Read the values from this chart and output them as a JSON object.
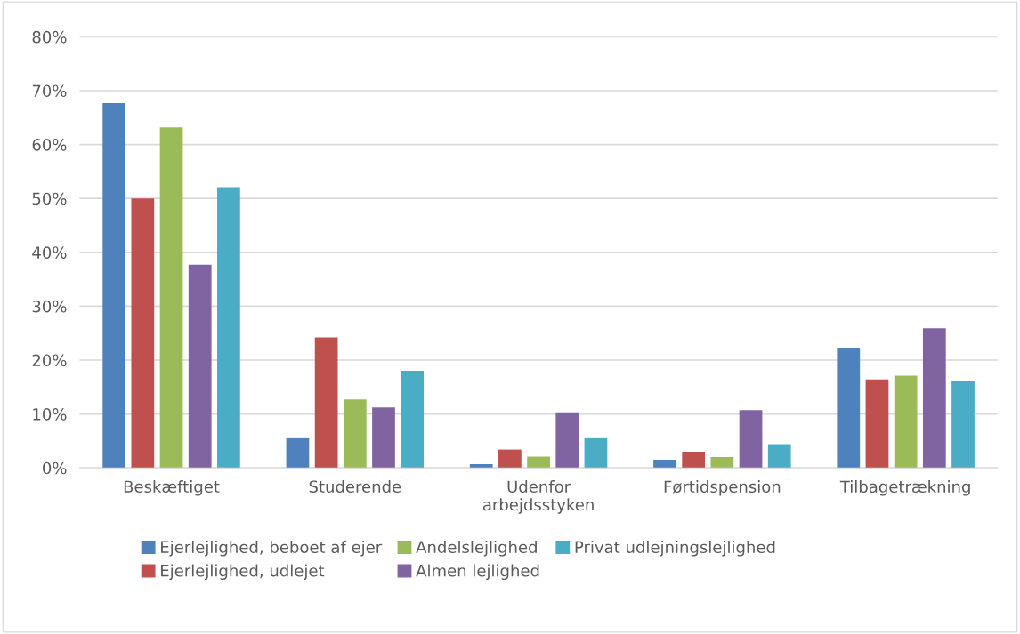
{
  "chart_data": {
    "type": "bar",
    "categories": [
      "Beskæftiget",
      "Studerende",
      "Udenfor\narbejdsstyken",
      "Førtidspension",
      "Tilbagetrækning"
    ],
    "series": [
      {
        "name": "Ejerlejlighed, beboet af ejer",
        "color": "#4f81bd",
        "values": [
          67.7,
          5.5,
          0.7,
          1.5,
          22.3
        ]
      },
      {
        "name": "Ejerlejlighed, udlejet",
        "color": "#c0504d",
        "values": [
          50.0,
          24.2,
          3.4,
          3.0,
          16.4
        ]
      },
      {
        "name": "Andelslejlighed",
        "color": "#9bbb59",
        "values": [
          63.2,
          12.7,
          2.1,
          2.0,
          17.1
        ]
      },
      {
        "name": "Almen lejlighed",
        "color": "#8064a2",
        "values": [
          37.7,
          11.2,
          10.3,
          10.7,
          25.9
        ]
      },
      {
        "name": "Privat udlejningslejlighed",
        "color": "#4bacc6",
        "values": [
          52.1,
          18.0,
          5.5,
          4.4,
          16.2
        ]
      }
    ],
    "ylim": [
      0,
      80
    ],
    "yticks": [
      {
        "value": 0,
        "label": "0%"
      },
      {
        "value": 10,
        "label": "10%"
      },
      {
        "value": 20,
        "label": "20%"
      },
      {
        "value": 30,
        "label": "30%"
      },
      {
        "value": 40,
        "label": "40%"
      },
      {
        "value": 50,
        "label": "50%"
      },
      {
        "value": 60,
        "label": "60%"
      },
      {
        "value": 70,
        "label": "70%"
      },
      {
        "value": 80,
        "label": "80%"
      }
    ],
    "grid": "y",
    "legend": "bottom"
  }
}
